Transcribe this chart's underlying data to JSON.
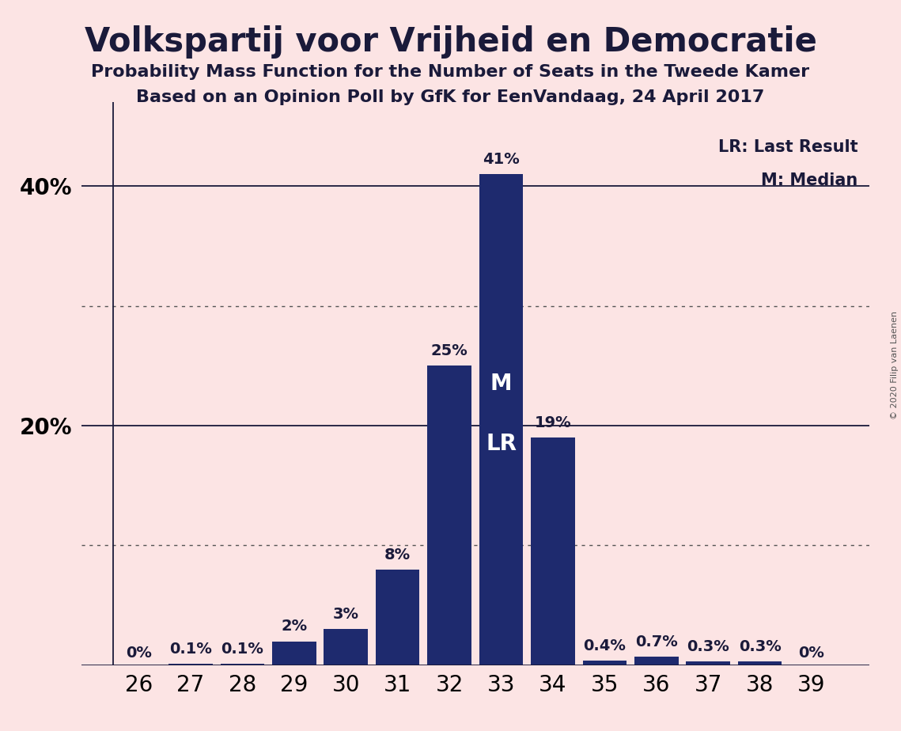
{
  "title": "Volkspartij voor Vrijheid en Democratie",
  "subtitle1": "Probability Mass Function for the Number of Seats in the Tweede Kamer",
  "subtitle2": "Based on an Opinion Poll by GfK for EenVandaag, 24 April 2017",
  "copyright": "© 2020 Filip van Laenen",
  "categories": [
    26,
    27,
    28,
    29,
    30,
    31,
    32,
    33,
    34,
    35,
    36,
    37,
    38,
    39
  ],
  "values": [
    0.0,
    0.1,
    0.1,
    2.0,
    3.0,
    8.0,
    25.0,
    41.0,
    19.0,
    0.4,
    0.7,
    0.3,
    0.3,
    0.0
  ],
  "labels": [
    "0%",
    "0.1%",
    "0.1%",
    "2%",
    "3%",
    "8%",
    "25%",
    "41%",
    "19%",
    "0.4%",
    "0.7%",
    "0.3%",
    "0.3%",
    "0%"
  ],
  "bar_color": "#1e2a6e",
  "background_color": "#fce4e4",
  "median_seat": 33,
  "last_result_seat": 33,
  "median_label": "M",
  "last_result_label": "LR",
  "legend_lr": "LR: Last Result",
  "legend_m": "M: Median",
  "ylim": [
    0,
    47
  ],
  "dotted_lines": [
    10,
    30
  ],
  "solid_lines": [
    20,
    40
  ],
  "title_fontsize": 30,
  "subtitle_fontsize": 16,
  "axis_fontsize": 20,
  "label_fontsize": 14
}
